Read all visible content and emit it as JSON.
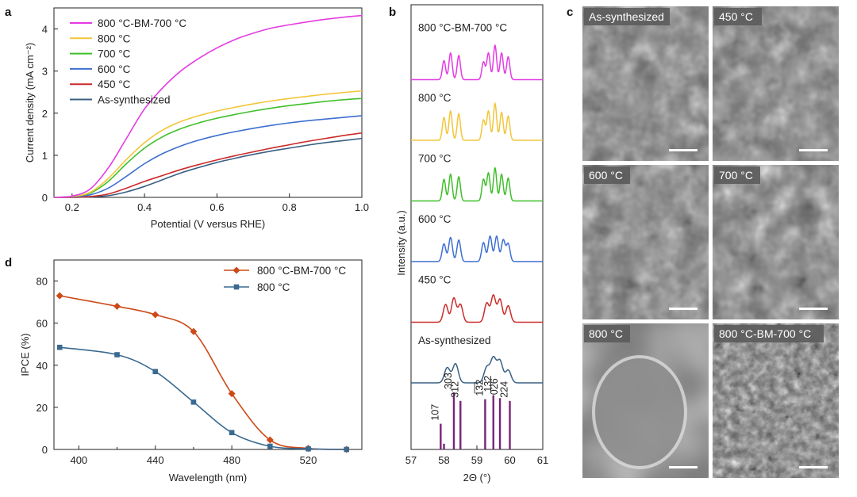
{
  "panel_labels": {
    "a": "a",
    "b": "b",
    "c": "c",
    "d": "d"
  },
  "chart_data": [
    {
      "id": "a",
      "type": "line",
      "xlabel": "Potential (V versus RHE)",
      "ylabel": "Current density (mA cm⁻²)",
      "xlim": [
        0.15,
        1.0
      ],
      "ylim": [
        0,
        4.5
      ],
      "xticks": [
        0.2,
        0.4,
        0.6,
        0.8,
        1.0
      ],
      "xtick_labels": [
        "0.2",
        "0.4",
        "0.6",
        "0.8",
        "1.0"
      ],
      "yticks": [
        0,
        1,
        2,
        3,
        4
      ],
      "ytick_labels": [
        "0",
        "1",
        "2",
        "3",
        "4"
      ],
      "legend": "top-left",
      "series": [
        {
          "name": "800 °C-BM-700 °C",
          "color": "#e43be3",
          "x": [
            0.15,
            0.2,
            0.25,
            0.3,
            0.35,
            0.4,
            0.45,
            0.5,
            0.55,
            0.6,
            0.65,
            0.7,
            0.75,
            0.8,
            0.85,
            0.9,
            0.95,
            1.0
          ],
          "y": [
            0.0,
            0.03,
            0.2,
            0.7,
            1.4,
            2.1,
            2.6,
            3.0,
            3.3,
            3.55,
            3.75,
            3.9,
            4.02,
            4.1,
            4.17,
            4.23,
            4.28,
            4.32
          ]
        },
        {
          "name": "800 °C",
          "color": "#f2c63a",
          "x": [
            0.15,
            0.2,
            0.25,
            0.3,
            0.35,
            0.4,
            0.45,
            0.5,
            0.55,
            0.6,
            0.65,
            0.7,
            0.75,
            0.8,
            0.85,
            0.9,
            0.95,
            1.0
          ],
          "y": [
            0.0,
            0.02,
            0.12,
            0.45,
            0.9,
            1.3,
            1.6,
            1.8,
            1.94,
            2.05,
            2.14,
            2.22,
            2.29,
            2.35,
            2.4,
            2.45,
            2.49,
            2.53
          ]
        },
        {
          "name": "700 °C",
          "color": "#3fbf2a",
          "x": [
            0.15,
            0.2,
            0.25,
            0.3,
            0.35,
            0.4,
            0.45,
            0.5,
            0.55,
            0.6,
            0.65,
            0.7,
            0.75,
            0.8,
            0.85,
            0.9,
            0.95,
            1.0
          ],
          "y": [
            0.0,
            0.02,
            0.1,
            0.38,
            0.8,
            1.17,
            1.44,
            1.63,
            1.77,
            1.88,
            1.97,
            2.05,
            2.12,
            2.18,
            2.23,
            2.28,
            2.32,
            2.35
          ]
        },
        {
          "name": "600 °C",
          "color": "#3d6fd1",
          "x": [
            0.15,
            0.2,
            0.25,
            0.3,
            0.35,
            0.4,
            0.45,
            0.5,
            0.55,
            0.6,
            0.65,
            0.7,
            0.75,
            0.8,
            0.85,
            0.9,
            0.95,
            1.0
          ],
          "y": [
            0.0,
            0.01,
            0.06,
            0.22,
            0.5,
            0.8,
            1.04,
            1.22,
            1.36,
            1.47,
            1.56,
            1.64,
            1.71,
            1.77,
            1.82,
            1.86,
            1.9,
            1.94
          ]
        },
        {
          "name": "450 °C",
          "color": "#cc2a2a",
          "x": [
            0.15,
            0.2,
            0.25,
            0.3,
            0.35,
            0.4,
            0.45,
            0.5,
            0.55,
            0.6,
            0.65,
            0.7,
            0.75,
            0.8,
            0.85,
            0.9,
            0.95,
            1.0
          ],
          "y": [
            0.0,
            0.0,
            0.02,
            0.08,
            0.22,
            0.38,
            0.52,
            0.66,
            0.78,
            0.89,
            0.99,
            1.08,
            1.17,
            1.25,
            1.33,
            1.4,
            1.47,
            1.53
          ]
        },
        {
          "name": "As-synthesized",
          "color": "#3a6083",
          "x": [
            0.15,
            0.2,
            0.25,
            0.3,
            0.35,
            0.4,
            0.45,
            0.5,
            0.55,
            0.6,
            0.65,
            0.7,
            0.75,
            0.8,
            0.85,
            0.9,
            0.95,
            1.0
          ],
          "y": [
            0.0,
            0.0,
            0.01,
            0.04,
            0.13,
            0.26,
            0.42,
            0.58,
            0.71,
            0.83,
            0.93,
            1.02,
            1.1,
            1.17,
            1.24,
            1.3,
            1.35,
            1.4
          ]
        }
      ]
    },
    {
      "id": "b",
      "type": "line",
      "xlabel": "2Θ (°)",
      "ylabel": "Intensity (a.u.)",
      "xlim": [
        57,
        61
      ],
      "xticks": [
        57,
        58,
        59,
        60,
        61
      ],
      "xtick_labels": [
        "57",
        "58",
        "59",
        "60",
        "61"
      ],
      "offset_step": 1.5,
      "series": [
        {
          "name": "800 °C-BM-700 °C",
          "color": "#e43be3",
          "offset": 5,
          "peaks": [
            [
              58.0,
              0.75,
              0.07
            ],
            [
              58.2,
              1.05,
              0.07
            ],
            [
              58.45,
              0.95,
              0.07
            ],
            [
              59.2,
              0.7,
              0.07
            ],
            [
              59.35,
              1.05,
              0.07
            ],
            [
              59.55,
              1.35,
              0.07
            ],
            [
              59.75,
              1.05,
              0.07
            ],
            [
              59.95,
              0.9,
              0.07
            ]
          ]
        },
        {
          "name": "800 °C",
          "color": "#f2c63a",
          "offset": 4,
          "peaks": [
            [
              58.0,
              0.9,
              0.07
            ],
            [
              58.2,
              1.15,
              0.07
            ],
            [
              58.45,
              1.05,
              0.07
            ],
            [
              59.2,
              0.8,
              0.07
            ],
            [
              59.35,
              1.15,
              0.07
            ],
            [
              59.55,
              1.45,
              0.07
            ],
            [
              59.75,
              1.1,
              0.07
            ],
            [
              59.95,
              0.95,
              0.07
            ]
          ]
        },
        {
          "name": "700 °C",
          "color": "#3fbf2a",
          "offset": 3,
          "peaks": [
            [
              58.0,
              0.85,
              0.07
            ],
            [
              58.2,
              1.05,
              0.07
            ],
            [
              58.45,
              0.95,
              0.07
            ],
            [
              59.2,
              0.85,
              0.07
            ],
            [
              59.35,
              1.1,
              0.07
            ],
            [
              59.55,
              1.3,
              0.07
            ],
            [
              59.75,
              1.05,
              0.07
            ],
            [
              59.95,
              0.9,
              0.07
            ]
          ]
        },
        {
          "name": "600 °C",
          "color": "#3d6fd1",
          "offset": 2,
          "peaks": [
            [
              58.0,
              0.7,
              0.08
            ],
            [
              58.2,
              0.95,
              0.08
            ],
            [
              58.45,
              0.85,
              0.08
            ],
            [
              59.2,
              0.75,
              0.08
            ],
            [
              59.4,
              1.0,
              0.08
            ],
            [
              59.6,
              1.0,
              0.08
            ],
            [
              59.8,
              0.85,
              0.08
            ],
            [
              59.95,
              0.7,
              0.08
            ]
          ]
        },
        {
          "name": "450 °C",
          "color": "#cc2a2a",
          "offset": 1,
          "peaks": [
            [
              58.05,
              0.7,
              0.1
            ],
            [
              58.3,
              0.95,
              0.1
            ],
            [
              58.5,
              0.7,
              0.1
            ],
            [
              59.3,
              0.75,
              0.1
            ],
            [
              59.5,
              1.05,
              0.1
            ],
            [
              59.7,
              0.9,
              0.1
            ],
            [
              59.95,
              0.65,
              0.1
            ]
          ]
        },
        {
          "name": "As-synthesized",
          "color": "#3a6083",
          "offset": 0,
          "peaks": [
            [
              58.1,
              0.6,
              0.12
            ],
            [
              58.35,
              0.75,
              0.12
            ],
            [
              59.3,
              0.6,
              0.12
            ],
            [
              59.5,
              0.95,
              0.12
            ],
            [
              59.7,
              0.85,
              0.12
            ],
            [
              59.95,
              0.5,
              0.12
            ]
          ]
        }
      ],
      "reference_peaks": {
        "color": "#7a2378",
        "x": [
          57.9,
          58.0,
          58.3,
          58.5,
          59.25,
          59.5,
          59.7,
          60.0
        ],
        "heights": [
          0.45,
          0.1,
          1.0,
          0.85,
          0.88,
          0.95,
          0.9,
          0.85
        ],
        "labels": [
          "107",
          "",
          "303",
          "312",
          "1̅3̅2",
          "132",
          "026",
          "224"
        ]
      }
    },
    {
      "id": "d",
      "type": "line",
      "xlabel": "Wavelength (nm)",
      "ylabel": "IPCE (%)",
      "xlim": [
        387,
        548
      ],
      "ylim": [
        0,
        90
      ],
      "xticks": [
        400,
        440,
        480,
        520
      ],
      "xtick_labels": [
        "400",
        "440",
        "480",
        "520"
      ],
      "yticks": [
        0,
        20,
        40,
        60,
        80
      ],
      "ytick_labels": [
        "0",
        "20",
        "40",
        "60",
        "80"
      ],
      "legend": "top-right",
      "series": [
        {
          "name": "800 °C-BM-700 °C",
          "color": "#cc4a16",
          "marker": "diamond",
          "x": [
            390,
            420,
            440,
            460,
            480,
            500,
            520,
            540
          ],
          "y": [
            73,
            68,
            64,
            56,
            26.5,
            4.5,
            0.5,
            0
          ]
        },
        {
          "name": "800 °C",
          "color": "#3a6a91",
          "marker": "square",
          "x": [
            390,
            420,
            440,
            460,
            480,
            500,
            520,
            540
          ],
          "y": [
            48.5,
            45,
            37,
            22.5,
            8,
            1.5,
            0.3,
            0
          ]
        }
      ]
    }
  ],
  "sem": {
    "tiles": [
      {
        "label": "As-synthesized"
      },
      {
        "label": "450 °C"
      },
      {
        "label": "600 °C"
      },
      {
        "label": "700 °C"
      },
      {
        "label": "800 °C"
      },
      {
        "label": "800 °C-BM-700 °C"
      }
    ]
  }
}
